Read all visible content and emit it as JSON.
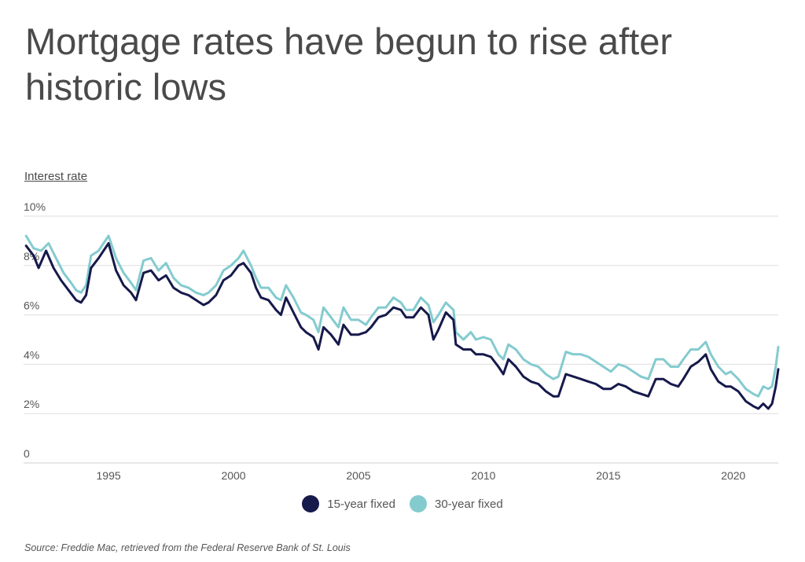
{
  "page": {
    "title": "Mortgage rates have begun to rise after historic lows",
    "y_axis_title": "Interest rate",
    "source": "Source:  Freddie Mac, retrieved from the Federal Reserve Bank of St. Louis"
  },
  "legend": [
    {
      "label": "15-year fixed",
      "color": "#16194a"
    },
    {
      "label": "30-year fixed",
      "color": "#84cbcf"
    }
  ],
  "chart_data": {
    "type": "line",
    "title": "Mortgage rates have begun to rise after historic lows",
    "xlabel": "",
    "ylabel": "Interest rate",
    "xlim": [
      1991.6,
      2021.8
    ],
    "ylim": [
      0,
      10
    ],
    "y_ticks": [
      {
        "value": 0,
        "label": "0"
      },
      {
        "value": 2,
        "label": "2%"
      },
      {
        "value": 4,
        "label": "4%"
      },
      {
        "value": 6,
        "label": "6%"
      },
      {
        "value": 8,
        "label": "8%"
      },
      {
        "value": 10,
        "label": "10%"
      }
    ],
    "x_ticks": [
      {
        "value": 1995,
        "label": "1995"
      },
      {
        "value": 2000,
        "label": "2000"
      },
      {
        "value": 2005,
        "label": "2005"
      },
      {
        "value": 2010,
        "label": "2010"
      },
      {
        "value": 2015,
        "label": "2015"
      },
      {
        "value": 2020,
        "label": "2020"
      }
    ],
    "grid": "horizontal",
    "legend_position": "bottom-center",
    "series": [
      {
        "name": "30-year fixed",
        "color": "#84cbcf",
        "points": [
          [
            1991.7,
            9.2
          ],
          [
            1992.0,
            8.7
          ],
          [
            1992.3,
            8.6
          ],
          [
            1992.6,
            8.9
          ],
          [
            1992.9,
            8.3
          ],
          [
            1993.2,
            7.7
          ],
          [
            1993.5,
            7.3
          ],
          [
            1993.7,
            7.0
          ],
          [
            1993.9,
            6.9
          ],
          [
            1994.1,
            7.2
          ],
          [
            1994.3,
            8.4
          ],
          [
            1994.6,
            8.6
          ],
          [
            1994.8,
            8.9
          ],
          [
            1995.0,
            9.2
          ],
          [
            1995.3,
            8.3
          ],
          [
            1995.6,
            7.7
          ],
          [
            1995.9,
            7.3
          ],
          [
            1996.1,
            7.0
          ],
          [
            1996.4,
            8.2
          ],
          [
            1996.7,
            8.3
          ],
          [
            1997.0,
            7.8
          ],
          [
            1997.3,
            8.1
          ],
          [
            1997.6,
            7.5
          ],
          [
            1997.9,
            7.2
          ],
          [
            1998.2,
            7.1
          ],
          [
            1998.5,
            6.9
          ],
          [
            1998.8,
            6.8
          ],
          [
            1999.0,
            6.9
          ],
          [
            1999.3,
            7.2
          ],
          [
            1999.6,
            7.8
          ],
          [
            1999.9,
            8.0
          ],
          [
            2000.2,
            8.3
          ],
          [
            2000.4,
            8.6
          ],
          [
            2000.7,
            8.0
          ],
          [
            2000.9,
            7.5
          ],
          [
            2001.1,
            7.1
          ],
          [
            2001.4,
            7.1
          ],
          [
            2001.7,
            6.7
          ],
          [
            2001.9,
            6.6
          ],
          [
            2002.1,
            7.2
          ],
          [
            2002.4,
            6.7
          ],
          [
            2002.7,
            6.1
          ],
          [
            2002.9,
            6.0
          ],
          [
            2003.2,
            5.8
          ],
          [
            2003.4,
            5.3
          ],
          [
            2003.6,
            6.3
          ],
          [
            2003.9,
            5.9
          ],
          [
            2004.2,
            5.5
          ],
          [
            2004.4,
            6.3
          ],
          [
            2004.7,
            5.8
          ],
          [
            2005.0,
            5.8
          ],
          [
            2005.3,
            5.6
          ],
          [
            2005.5,
            5.9
          ],
          [
            2005.8,
            6.3
          ],
          [
            2006.1,
            6.3
          ],
          [
            2006.4,
            6.7
          ],
          [
            2006.7,
            6.5
          ],
          [
            2006.9,
            6.2
          ],
          [
            2007.2,
            6.2
          ],
          [
            2007.5,
            6.7
          ],
          [
            2007.8,
            6.4
          ],
          [
            2008.0,
            5.7
          ],
          [
            2008.2,
            6.0
          ],
          [
            2008.5,
            6.5
          ],
          [
            2008.8,
            6.2
          ],
          [
            2008.9,
            5.3
          ],
          [
            2009.2,
            5.0
          ],
          [
            2009.5,
            5.3
          ],
          [
            2009.7,
            5.0
          ],
          [
            2010.0,
            5.1
          ],
          [
            2010.3,
            5.0
          ],
          [
            2010.6,
            4.4
          ],
          [
            2010.8,
            4.2
          ],
          [
            2011.0,
            4.8
          ],
          [
            2011.3,
            4.6
          ],
          [
            2011.6,
            4.2
          ],
          [
            2011.9,
            4.0
          ],
          [
            2012.2,
            3.9
          ],
          [
            2012.5,
            3.6
          ],
          [
            2012.8,
            3.4
          ],
          [
            2013.0,
            3.5
          ],
          [
            2013.3,
            4.5
          ],
          [
            2013.6,
            4.4
          ],
          [
            2013.9,
            4.4
          ],
          [
            2014.2,
            4.3
          ],
          [
            2014.5,
            4.1
          ],
          [
            2014.8,
            3.9
          ],
          [
            2015.1,
            3.7
          ],
          [
            2015.4,
            4.0
          ],
          [
            2015.7,
            3.9
          ],
          [
            2016.0,
            3.7
          ],
          [
            2016.3,
            3.5
          ],
          [
            2016.6,
            3.4
          ],
          [
            2016.9,
            4.2
          ],
          [
            2017.2,
            4.2
          ],
          [
            2017.5,
            3.9
          ],
          [
            2017.8,
            3.9
          ],
          [
            2018.0,
            4.2
          ],
          [
            2018.3,
            4.6
          ],
          [
            2018.6,
            4.6
          ],
          [
            2018.9,
            4.9
          ],
          [
            2019.1,
            4.4
          ],
          [
            2019.4,
            3.9
          ],
          [
            2019.7,
            3.6
          ],
          [
            2019.9,
            3.7
          ],
          [
            2020.2,
            3.4
          ],
          [
            2020.5,
            3.0
          ],
          [
            2020.8,
            2.8
          ],
          [
            2021.0,
            2.7
          ],
          [
            2021.2,
            3.1
          ],
          [
            2021.4,
            3.0
          ],
          [
            2021.55,
            3.1
          ],
          [
            2021.7,
            3.9
          ],
          [
            2021.8,
            4.7
          ]
        ]
      },
      {
        "name": "15-year fixed",
        "color": "#16194a",
        "points": [
          [
            1991.7,
            8.8
          ],
          [
            1992.0,
            8.4
          ],
          [
            1992.2,
            7.9
          ],
          [
            1992.5,
            8.6
          ],
          [
            1992.8,
            7.9
          ],
          [
            1993.1,
            7.4
          ],
          [
            1993.4,
            7.0
          ],
          [
            1993.7,
            6.6
          ],
          [
            1993.9,
            6.5
          ],
          [
            1994.1,
            6.8
          ],
          [
            1994.3,
            7.9
          ],
          [
            1994.6,
            8.3
          ],
          [
            1994.8,
            8.6
          ],
          [
            1995.0,
            8.9
          ],
          [
            1995.3,
            7.8
          ],
          [
            1995.6,
            7.2
          ],
          [
            1995.9,
            6.9
          ],
          [
            1996.1,
            6.6
          ],
          [
            1996.4,
            7.7
          ],
          [
            1996.7,
            7.8
          ],
          [
            1997.0,
            7.4
          ],
          [
            1997.3,
            7.6
          ],
          [
            1997.6,
            7.1
          ],
          [
            1997.9,
            6.9
          ],
          [
            1998.2,
            6.8
          ],
          [
            1998.5,
            6.6
          ],
          [
            1998.8,
            6.4
          ],
          [
            1999.0,
            6.5
          ],
          [
            1999.3,
            6.8
          ],
          [
            1999.6,
            7.4
          ],
          [
            1999.9,
            7.6
          ],
          [
            2000.2,
            8.0
          ],
          [
            2000.4,
            8.1
          ],
          [
            2000.7,
            7.7
          ],
          [
            2000.9,
            7.1
          ],
          [
            2001.1,
            6.7
          ],
          [
            2001.4,
            6.6
          ],
          [
            2001.7,
            6.2
          ],
          [
            2001.9,
            6.0
          ],
          [
            2002.1,
            6.7
          ],
          [
            2002.4,
            6.1
          ],
          [
            2002.7,
            5.5
          ],
          [
            2002.9,
            5.3
          ],
          [
            2003.2,
            5.1
          ],
          [
            2003.4,
            4.6
          ],
          [
            2003.6,
            5.5
          ],
          [
            2003.9,
            5.2
          ],
          [
            2004.2,
            4.8
          ],
          [
            2004.4,
            5.6
          ],
          [
            2004.7,
            5.2
          ],
          [
            2005.0,
            5.2
          ],
          [
            2005.3,
            5.3
          ],
          [
            2005.5,
            5.5
          ],
          [
            2005.8,
            5.9
          ],
          [
            2006.1,
            6.0
          ],
          [
            2006.4,
            6.3
          ],
          [
            2006.7,
            6.2
          ],
          [
            2006.9,
            5.9
          ],
          [
            2007.2,
            5.9
          ],
          [
            2007.5,
            6.3
          ],
          [
            2007.8,
            6.0
          ],
          [
            2008.0,
            5.0
          ],
          [
            2008.2,
            5.4
          ],
          [
            2008.5,
            6.1
          ],
          [
            2008.8,
            5.8
          ],
          [
            2008.9,
            4.8
          ],
          [
            2009.2,
            4.6
          ],
          [
            2009.5,
            4.6
          ],
          [
            2009.7,
            4.4
          ],
          [
            2010.0,
            4.4
          ],
          [
            2010.3,
            4.3
          ],
          [
            2010.6,
            3.9
          ],
          [
            2010.8,
            3.6
          ],
          [
            2011.0,
            4.2
          ],
          [
            2011.3,
            3.9
          ],
          [
            2011.6,
            3.5
          ],
          [
            2011.9,
            3.3
          ],
          [
            2012.2,
            3.2
          ],
          [
            2012.5,
            2.9
          ],
          [
            2012.8,
            2.7
          ],
          [
            2013.0,
            2.7
          ],
          [
            2013.3,
            3.6
          ],
          [
            2013.6,
            3.5
          ],
          [
            2013.9,
            3.4
          ],
          [
            2014.2,
            3.3
          ],
          [
            2014.5,
            3.2
          ],
          [
            2014.8,
            3.0
          ],
          [
            2015.1,
            3.0
          ],
          [
            2015.4,
            3.2
          ],
          [
            2015.7,
            3.1
          ],
          [
            2016.0,
            2.9
          ],
          [
            2016.3,
            2.8
          ],
          [
            2016.6,
            2.7
          ],
          [
            2016.9,
            3.4
          ],
          [
            2017.2,
            3.4
          ],
          [
            2017.5,
            3.2
          ],
          [
            2017.8,
            3.1
          ],
          [
            2018.0,
            3.4
          ],
          [
            2018.3,
            3.9
          ],
          [
            2018.6,
            4.1
          ],
          [
            2018.9,
            4.4
          ],
          [
            2019.1,
            3.8
          ],
          [
            2019.4,
            3.3
          ],
          [
            2019.7,
            3.1
          ],
          [
            2019.9,
            3.1
          ],
          [
            2020.2,
            2.9
          ],
          [
            2020.5,
            2.5
          ],
          [
            2020.8,
            2.3
          ],
          [
            2021.0,
            2.2
          ],
          [
            2021.2,
            2.4
          ],
          [
            2021.4,
            2.2
          ],
          [
            2021.55,
            2.4
          ],
          [
            2021.7,
            3.1
          ],
          [
            2021.8,
            3.8
          ]
        ]
      }
    ]
  }
}
